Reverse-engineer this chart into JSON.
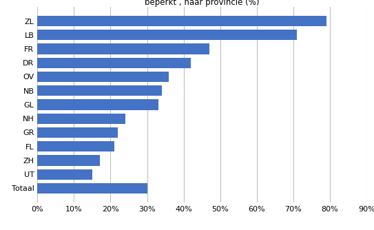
{
  "categories": [
    "ZL",
    "LB",
    "FR",
    "DR",
    "OV",
    "NB",
    "GL",
    "NH",
    "GR",
    "FL",
    "ZH",
    "UT",
    "Totaal"
  ],
  "values": [
    0.79,
    0.71,
    0.47,
    0.42,
    0.36,
    0.34,
    0.33,
    0.24,
    0.22,
    0.21,
    0.17,
    0.15,
    0.3
  ],
  "bar_color": "#4472C4",
  "title": "beperkt , naar provincie (%)",
  "title_fontsize": 8.5,
  "xlim": [
    0,
    0.9
  ],
  "xticks": [
    0.0,
    0.1,
    0.2,
    0.3,
    0.4,
    0.5,
    0.6,
    0.7,
    0.8,
    0.9
  ],
  "tick_labels": [
    "0%",
    "10%",
    "20%",
    "30%",
    "40%",
    "50%",
    "60%",
    "70%",
    "80%",
    "90%"
  ],
  "grid_color": "#bfbfbf",
  "bar_height": 0.75
}
